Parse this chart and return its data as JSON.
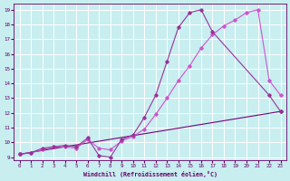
{
  "xlabel": "Windchill (Refroidissement éolien,°C)",
  "bg_color": "#c8eef0",
  "grid_color": "#ffffff",
  "line_color1": "#993399",
  "line_color2": "#cc55cc",
  "line_color3": "#770077",
  "xlim": [
    -0.5,
    23.5
  ],
  "ylim": [
    8.8,
    19.4
  ],
  "yticks": [
    9,
    10,
    11,
    12,
    13,
    14,
    15,
    16,
    17,
    18,
    19
  ],
  "xticks": [
    0,
    1,
    2,
    3,
    4,
    5,
    6,
    7,
    8,
    9,
    10,
    11,
    12,
    13,
    14,
    15,
    16,
    17,
    18,
    19,
    20,
    21,
    22,
    23
  ],
  "line1_x": [
    0,
    1,
    2,
    3,
    4,
    5,
    6,
    7,
    8,
    9,
    10,
    11,
    12,
    13,
    14,
    15,
    16,
    17,
    22,
    23
  ],
  "line1_y": [
    9.2,
    9.3,
    9.6,
    9.7,
    9.8,
    9.7,
    10.3,
    9.1,
    9.0,
    10.2,
    10.5,
    11.7,
    13.2,
    15.5,
    17.8,
    18.8,
    19.0,
    17.5,
    13.2,
    12.1
  ],
  "line2_x": [
    0,
    1,
    2,
    3,
    4,
    5,
    6,
    7,
    8,
    9,
    10,
    11,
    12,
    13,
    14,
    15,
    16,
    17,
    18,
    19,
    20,
    21,
    22,
    23
  ],
  "line2_y": [
    9.2,
    9.3,
    9.5,
    9.7,
    9.7,
    9.6,
    10.2,
    9.6,
    9.5,
    10.1,
    10.4,
    10.9,
    11.9,
    13.0,
    14.2,
    15.2,
    16.4,
    17.3,
    17.9,
    18.3,
    18.8,
    19.0,
    14.2,
    13.2
  ],
  "line3_x": [
    0,
    23
  ],
  "line3_y": [
    9.2,
    12.1
  ]
}
